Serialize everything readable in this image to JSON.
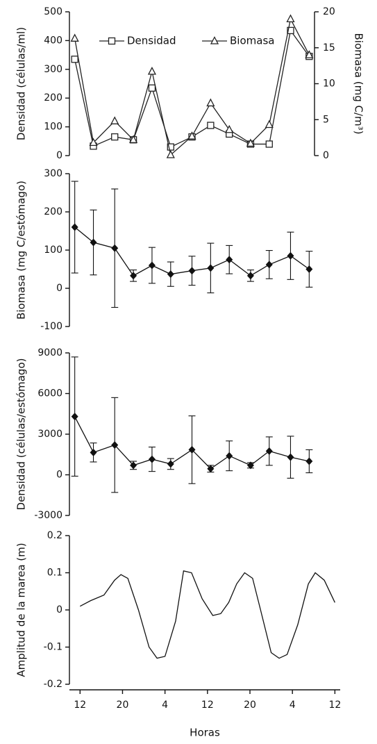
{
  "chart_data": [
    {
      "type": "line",
      "ylabel": "Densidad (células/ml)",
      "y2label": "Biomasa (mg C/m³)",
      "legend": "top",
      "x": [
        11,
        14.5,
        18.5,
        22,
        25.5,
        29,
        33,
        36.5,
        40,
        44,
        47.5,
        51.5,
        55
      ],
      "xlim": [
        10,
        56
      ],
      "ylim": [
        0,
        500
      ],
      "yticks": [
        0,
        100,
        200,
        300,
        400,
        500
      ],
      "y2lim": [
        0,
        20
      ],
      "y2ticks": [
        0,
        5,
        10,
        15,
        20
      ],
      "series": [
        {
          "name": "Densidad",
          "color": "#222",
          "marker": "square",
          "values": [
            335,
            33,
            65,
            55,
            235,
            30,
            65,
            105,
            75,
            40,
            40,
            435,
            345
          ]
        },
        {
          "name": "Biomasa",
          "color": "#222",
          "marker": "triangle",
          "axis": "y2",
          "values": [
            16.3,
            1.8,
            4.8,
            2.2,
            11.7,
            0.1,
            2.7,
            7.3,
            3.6,
            1.7,
            4.3,
            19,
            14
          ]
        }
      ]
    },
    {
      "type": "line",
      "ylabel": "Biomasa (mg C/estómago)",
      "x": [
        11,
        14.5,
        18.5,
        22,
        25.5,
        29,
        33,
        36.5,
        40,
        44,
        47.5,
        51.5,
        55
      ],
      "xlim": [
        10,
        56
      ],
      "ylim": [
        -100,
        300
      ],
      "yticks": [
        -100,
        0,
        100,
        200,
        300
      ],
      "series": [
        {
          "color": "#111",
          "marker": "diamond",
          "values": [
            160,
            120,
            105,
            33,
            60,
            37,
            46,
            53,
            75,
            33,
            62,
            85,
            50
          ],
          "errors": [
            120,
            85,
            155,
            15,
            47,
            32,
            38,
            65,
            37,
            15,
            37,
            62,
            47
          ]
        }
      ]
    },
    {
      "type": "line",
      "ylabel": "Densidad (células/estómago)",
      "x": [
        11,
        14.5,
        18.5,
        22,
        25.5,
        29,
        33,
        36.5,
        40,
        44,
        47.5,
        51.5,
        55
      ],
      "xlim": [
        10,
        56
      ],
      "ylim": [
        -3000,
        9000
      ],
      "yticks": [
        -3000,
        0,
        3000,
        6000,
        9000
      ],
      "series": [
        {
          "color": "#111",
          "marker": "diamond",
          "values": [
            4300,
            1650,
            2200,
            700,
            1150,
            800,
            1850,
            450,
            1400,
            700,
            1750,
            1300,
            1000
          ],
          "errors": [
            4400,
            700,
            3500,
            300,
            900,
            400,
            2500,
            250,
            1100,
            200,
            1050,
            1550,
            850
          ]
        }
      ]
    },
    {
      "type": "line",
      "ylabel": "Amplitud de la marea (m)",
      "xlabel": "Horas",
      "x": [
        12,
        14,
        16.5,
        18.5,
        19.7,
        21,
        23,
        25,
        26.5,
        28,
        30,
        31.5,
        33,
        35,
        37,
        38.5,
        40,
        41.5,
        43,
        44.5,
        46,
        48,
        49.5,
        51,
        53,
        55,
        56.3,
        58,
        60
      ],
      "xlim": [
        10,
        61
      ],
      "xticks": [
        12,
        20,
        {
          "value": 28,
          "label": "4"
        },
        {
          "value": 36,
          "label": "12"
        },
        {
          "value": 44,
          "label": "20"
        },
        {
          "value": 52,
          "label": "4"
        },
        {
          "value": 60,
          "label": "12"
        }
      ],
      "ylim": [
        -0.2,
        0.2
      ],
      "yticks": [
        -0.2,
        -0.1,
        0,
        0.1,
        0.2
      ],
      "series": [
        {
          "color": "#111",
          "values": [
            0.01,
            0.025,
            0.04,
            0.08,
            0.095,
            0.085,
            0.0,
            -0.1,
            -0.13,
            -0.125,
            -0.03,
            0.105,
            0.1,
            0.03,
            -0.015,
            -0.01,
            0.02,
            0.07,
            0.1,
            0.085,
            0.0,
            -0.115,
            -0.13,
            -0.12,
            -0.04,
            0.07,
            0.1,
            0.08,
            0.02
          ]
        }
      ]
    }
  ]
}
